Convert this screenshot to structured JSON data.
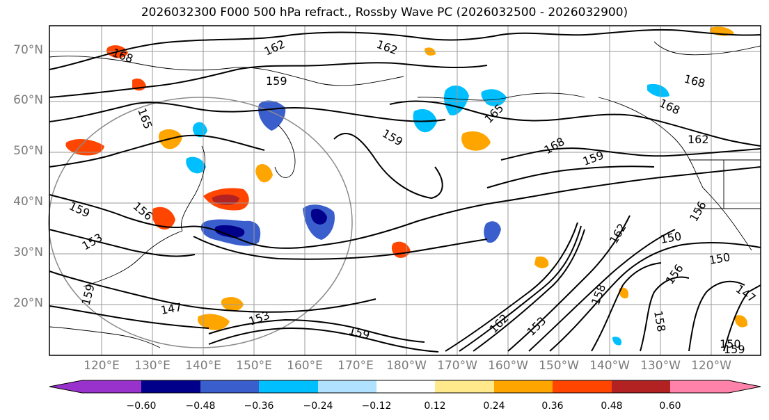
{
  "title": "2026032300 F000 500 hPa refract., Rossby Wave PC (2026032500 - 2026032900)",
  "lat_labels": [
    "70°N",
    "60°N",
    "50°N",
    "40°N",
    "30°N",
    "20°N"
  ],
  "lon_labels": [
    "120°E",
    "130°E",
    "140°E",
    "150°E",
    "160°E",
    "170°E",
    "180°W",
    "170°W",
    "160°W",
    "150°W",
    "140°W",
    "130°W",
    "120°W"
  ],
  "contour_labels": [
    "168",
    "162",
    "162",
    "159",
    "168",
    "168",
    "165",
    "165",
    "159",
    "168",
    "159",
    "162",
    "159",
    "156",
    "156",
    "162",
    "150",
    "150",
    "156",
    "159",
    "147",
    "153",
    "147",
    "150",
    "158",
    "158",
    "162",
    "159",
    "153",
    "153",
    "159"
  ],
  "colorbar": {
    "ticks": [
      "−0.60",
      "−0.48",
      "−0.36",
      "−0.24",
      "−0.12",
      "0.12",
      "0.24",
      "0.36",
      "0.48",
      "0.60"
    ],
    "colors": [
      "#9932cc",
      "#00008b",
      "#3a5fcd",
      "#00bfff",
      "#b0e2ff",
      "#ffffff",
      "#ffe98a",
      "#ffa500",
      "#ff4500",
      "#b22222",
      "#ff82ab"
    ]
  }
}
